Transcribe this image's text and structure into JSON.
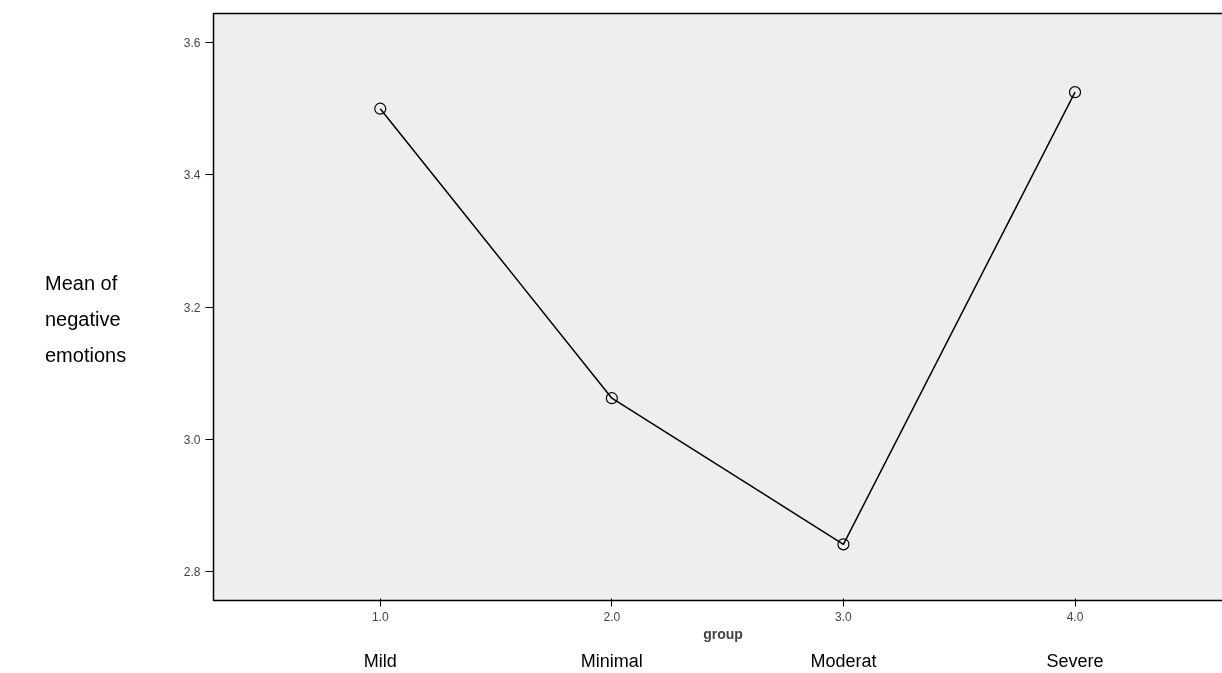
{
  "chart_data": {
    "type": "line",
    "xlabel": "group",
    "ylabel": "Mean of negative emotions",
    "x": [
      1,
      2,
      3,
      4
    ],
    "series": [
      {
        "color": "#000000",
        "values": [
          3.5,
          3.062,
          2.841,
          3.525
        ]
      }
    ],
    "xlim": [
      0.28,
      4.68
    ],
    "ylim": [
      2.756,
      3.644
    ],
    "xticks": [
      {
        "value": 1,
        "label": "1.0"
      },
      {
        "value": 2,
        "label": "2.0"
      },
      {
        "value": 3,
        "label": "3.0"
      },
      {
        "value": 4,
        "label": "4.0"
      }
    ],
    "yticks": [
      {
        "value": 2.8,
        "label": "2.8"
      },
      {
        "value": 3.0,
        "label": "3.0"
      },
      {
        "value": 3.2,
        "label": "3.2"
      },
      {
        "value": 3.4,
        "label": "3.4"
      },
      {
        "value": 3.6,
        "label": "3.6"
      }
    ],
    "annotations": [
      "Mild",
      "Minimal",
      "Moderat",
      "Severe"
    ],
    "marker": "circle",
    "line_style": "solid",
    "grid": false
  }
}
